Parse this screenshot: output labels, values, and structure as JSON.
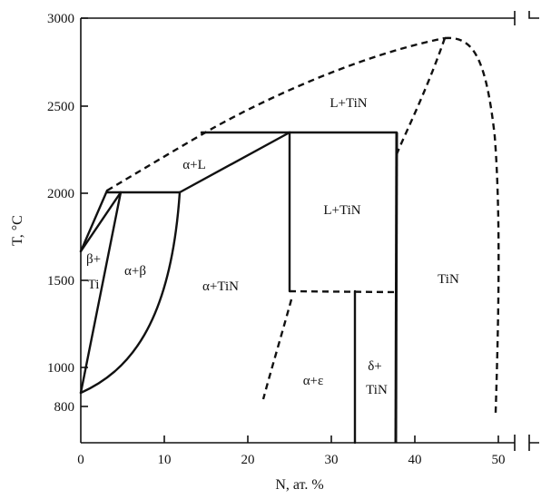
{
  "diagram": {
    "x_axis_label": "N, ат. %",
    "y_axis_label": "T, °C",
    "x_ticks": [
      "0",
      "10",
      "20",
      "30",
      "40",
      "50"
    ],
    "y_ticks": [
      "3000",
      "2500",
      "2000",
      "1500",
      "1000",
      "800"
    ],
    "regions": {
      "l_tin_top": "L+TiN",
      "alpha_l": "α+L",
      "l_tin_middle": "L+TiN",
      "beta_ti_line1": "β+",
      "beta_ti_line2": "Ti",
      "alpha_beta": "α+β",
      "alpha_tin": "α+TiN",
      "tin": "TiN",
      "alpha_epsilon": "α+ε",
      "delta_tin_line1": "δ+",
      "delta_tin_line2": "TiN"
    }
  }
}
